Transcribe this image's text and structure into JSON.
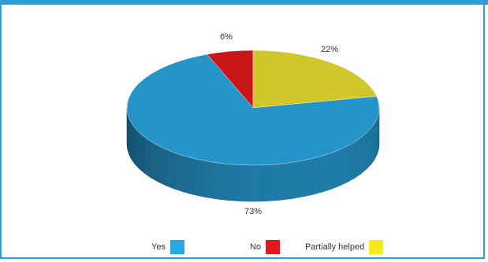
{
  "chart_data": {
    "type": "pie",
    "categories": [
      "Yes",
      "No",
      "Partially helped"
    ],
    "values": [
      73,
      6,
      22
    ],
    "value_labels": [
      "73%",
      "6%",
      "22%"
    ],
    "colors": {
      "Yes": "#2594c9",
      "No": "#c8161b",
      "Partially helped": "#d2c72a"
    },
    "legend_colors": {
      "Yes": "#27a9e1",
      "No": "#e5161e",
      "Partially helped": "#f6ea1e"
    },
    "three_d": true,
    "legend": "bottom"
  },
  "legend": {
    "items": [
      {
        "label": "Yes",
        "color": "#27a9e1"
      },
      {
        "label": "No",
        "color": "#e5161e"
      },
      {
        "label": "Partially helped",
        "color": "#f6ea1e"
      }
    ]
  }
}
